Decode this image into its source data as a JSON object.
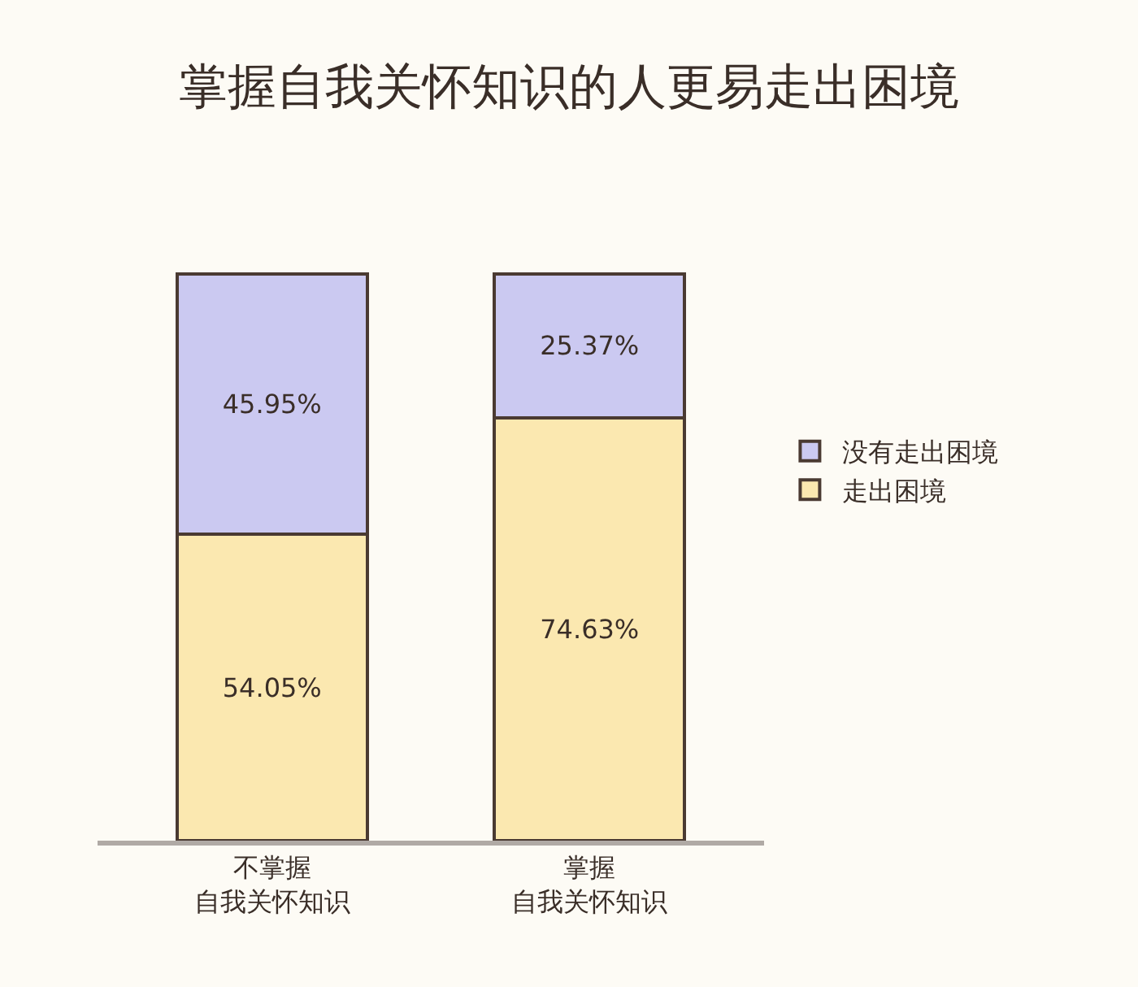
{
  "chart_data": {
    "type": "bar",
    "title": "掌握自我关怀知识的人更易走出困境",
    "categories": [
      "不掌握自我关怀知识",
      "掌握自我关怀知识"
    ],
    "stacked": true,
    "legend": "right",
    "tick_labels": "x",
    "grid": false,
    "series": [
      {
        "name": "走出困境",
        "color": "#fbe8b0",
        "values": [
          54.05,
          74.63
        ],
        "value_labels": [
          "54.05%",
          "74.63%"
        ]
      },
      {
        "name": "没有走出困境",
        "color": "#cbc9f1",
        "values": [
          45.95,
          25.37
        ],
        "value_labels": [
          "45.95%",
          "25.37%"
        ]
      }
    ]
  }
}
